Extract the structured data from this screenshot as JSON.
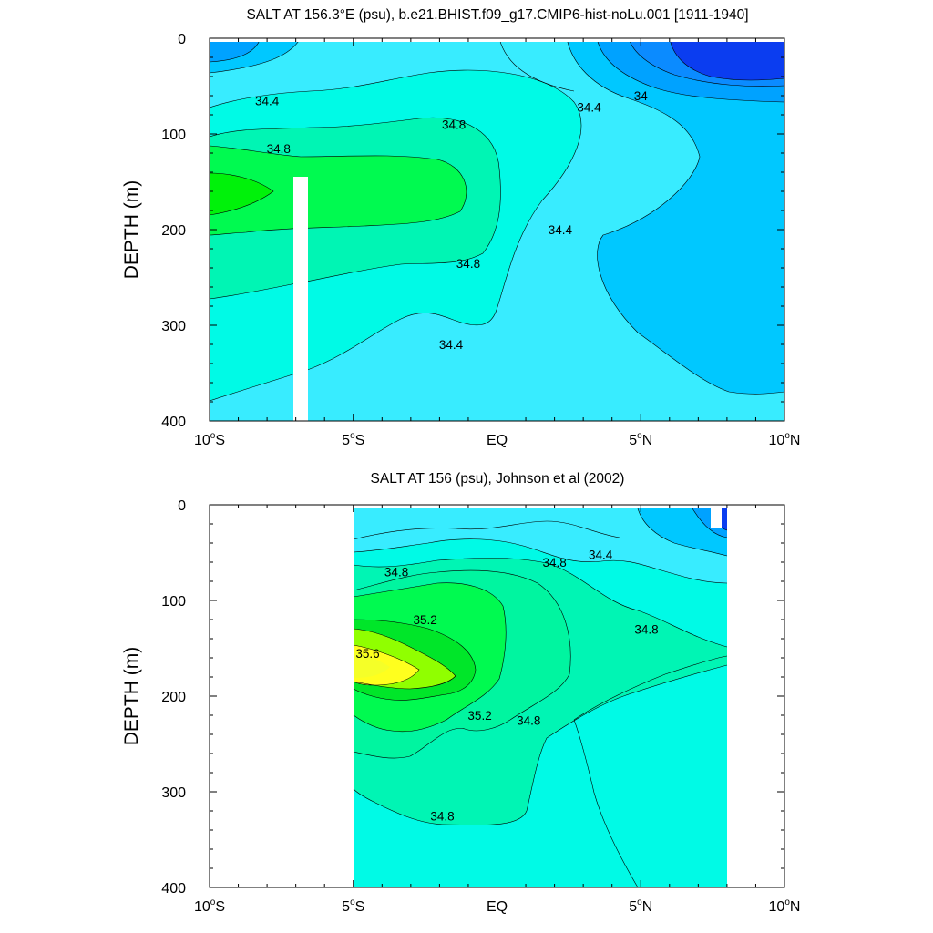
{
  "chart_data": [
    {
      "type": "contour",
      "title": "SALT AT 156.3°E (psu), b.e21.BHIST.f09_g17.CMIP6-hist-noLu.001 [1911-1940]",
      "ylabel": "DEPTH (m)",
      "xlabel": "",
      "xlim": [
        -10,
        10
      ],
      "ylim": [
        400,
        0
      ],
      "y_reversed": true,
      "x_ticks": [
        {
          "v": -10,
          "n": "10",
          "h": "S"
        },
        {
          "v": -5,
          "n": "5",
          "h": "S"
        },
        {
          "v": 0,
          "n": "EQ",
          "h": ""
        },
        {
          "v": 5,
          "n": "5",
          "h": "N"
        },
        {
          "v": 10,
          "n": "10",
          "h": "N"
        }
      ],
      "y_ticks": [
        "0",
        "100",
        "200",
        "300",
        "400"
      ],
      "levels": [
        34.0,
        34.2,
        34.4,
        34.6,
        34.8,
        35.0
      ],
      "colors": {
        "lt34": "#0b3df0",
        "34_34.2": "#00a2ff",
        "34.2_34.4": "#00c8ff",
        "34.4_34.6": "#38ecff",
        "34.6_34.8": "#00fae6",
        "34.8_35.0": "#00f5b4",
        "35.0_35.2": "#00fa50"
      },
      "contour_labels": [
        {
          "text": "34.4",
          "x": -8.0,
          "y": 65
        },
        {
          "text": "34.8",
          "x": -7.6,
          "y": 115
        },
        {
          "text": "34.8",
          "x": -1.5,
          "y": 90
        },
        {
          "text": "34.4",
          "x": 3.2,
          "y": 72
        },
        {
          "text": "34",
          "x": 5.0,
          "y": 60
        },
        {
          "text": "34.4",
          "x": 2.2,
          "y": 200
        },
        {
          "text": "34.8",
          "x": -1.0,
          "y": 235
        },
        {
          "text": "34.4",
          "x": -1.6,
          "y": 320
        }
      ]
    },
    {
      "type": "contour",
      "title": "SALT AT 156 (psu), Johnson et al (2002)",
      "ylabel": "DEPTH (m)",
      "xlabel": "",
      "xlim": [
        -10,
        10
      ],
      "ylim": [
        400,
        0
      ],
      "y_reversed": true,
      "data_range_x": [
        -5,
        8
      ],
      "x_ticks": [
        {
          "v": -10,
          "n": "10",
          "h": "S"
        },
        {
          "v": -5,
          "n": "5",
          "h": "S"
        },
        {
          "v": 0,
          "n": "EQ",
          "h": ""
        },
        {
          "v": 5,
          "n": "5",
          "h": "N"
        },
        {
          "v": 10,
          "n": "10",
          "h": "N"
        }
      ],
      "y_ticks": [
        "0",
        "100",
        "200",
        "300",
        "400"
      ],
      "levels": [
        34.4,
        34.6,
        34.8,
        35.0,
        35.2,
        35.4,
        35.6
      ],
      "colors": {
        "lt34.4": "#38ecff",
        "34.4_34.6": "#00fae6",
        "34.6_34.8": "#00f5b4",
        "34.8_35.0": "#00f5a0",
        "35.0_35.2": "#00fa50",
        "35.2_35.4": "#00e629",
        "35.4_35.6": "#90ff00",
        "gt35.6": "#ffff1e"
      },
      "contour_labels": [
        {
          "text": "34.8",
          "x": -3.5,
          "y": 70
        },
        {
          "text": "34.8",
          "x": 2.0,
          "y": 60
        },
        {
          "text": "34.4",
          "x": 3.6,
          "y": 52
        },
        {
          "text": "35.2",
          "x": -2.5,
          "y": 120
        },
        {
          "text": "35.6",
          "x": -4.5,
          "y": 155
        },
        {
          "text": "34.8",
          "x": 5.2,
          "y": 130
        },
        {
          "text": "35.2",
          "x": -0.6,
          "y": 220
        },
        {
          "text": "34.8",
          "x": 1.1,
          "y": 225
        },
        {
          "text": "34.8",
          "x": -1.9,
          "y": 325
        }
      ]
    }
  ]
}
